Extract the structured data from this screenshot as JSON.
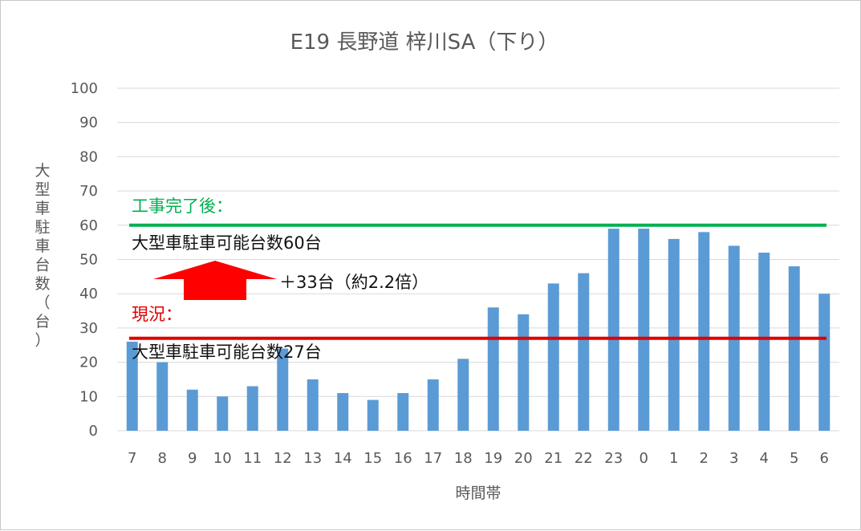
{
  "chart_data": {
    "type": "bar",
    "title": "E19 長野道 梓川SA（下り）",
    "xlabel": "時間帯",
    "ylabel": "大型車駐車台数（台）",
    "ylim": [
      0,
      100
    ],
    "yticks": [
      0,
      10,
      20,
      30,
      40,
      50,
      60,
      70,
      80,
      90,
      100
    ],
    "grid": true,
    "bar_color": "#5b9bd5",
    "categories": [
      "7",
      "8",
      "9",
      "10",
      "11",
      "12",
      "13",
      "14",
      "15",
      "16",
      "17",
      "18",
      "19",
      "20",
      "21",
      "22",
      "23",
      "0",
      "1",
      "2",
      "3",
      "4",
      "5",
      "6"
    ],
    "values": [
      26,
      20,
      12,
      10,
      13,
      24,
      15,
      11,
      9,
      11,
      15,
      21,
      36,
      34,
      43,
      46,
      59,
      59,
      56,
      58,
      54,
      52,
      48,
      40
    ],
    "reference_lines": [
      {
        "value": 60,
        "color": "#00b050",
        "heading": "工事完了後：",
        "label": "大型車駐車可能台数60台"
      },
      {
        "value": 27,
        "color": "#e00000",
        "heading": "現況：",
        "label": "大型車駐車可能台数27台"
      }
    ],
    "arrow": {
      "color": "#ff0000",
      "label": "＋33台（約2.2倍）"
    }
  }
}
